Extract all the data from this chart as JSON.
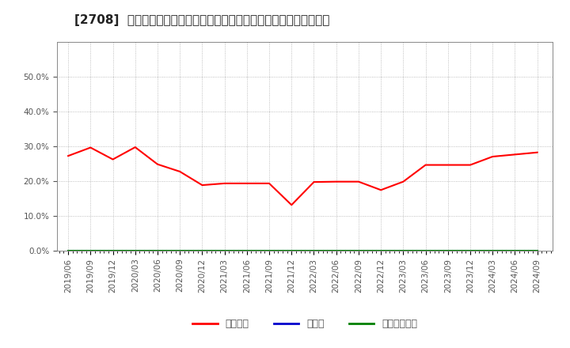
{
  "title": "[2708]  自己資本、のれん、繰延税金資産の総資産に対する比率の推移",
  "x_labels": [
    "2019/06",
    "2019/09",
    "2019/12",
    "2020/03",
    "2020/06",
    "2020/09",
    "2020/12",
    "2021/03",
    "2021/06",
    "2021/09",
    "2021/12",
    "2022/03",
    "2022/06",
    "2022/09",
    "2022/12",
    "2023/03",
    "2023/06",
    "2023/09",
    "2023/12",
    "2024/03",
    "2024/06",
    "2024/09"
  ],
  "equity_ratio": [
    0.272,
    0.296,
    0.262,
    0.297,
    0.248,
    0.227,
    0.188,
    0.193,
    0.193,
    0.193,
    0.131,
    0.197,
    0.198,
    0.198,
    0.174,
    0.198,
    0.246,
    0.246,
    0.246,
    0.27,
    0.276,
    0.282
  ],
  "noren_ratio": [
    0.0,
    0.0,
    0.0,
    0.0,
    0.0,
    0.0,
    0.0,
    0.0,
    0.0,
    0.0,
    0.0,
    0.0,
    0.0,
    0.0,
    0.0,
    0.0,
    0.0,
    0.0,
    0.0,
    0.0,
    0.0,
    0.0
  ],
  "deferred_tax_ratio": [
    0.0,
    0.0,
    0.0,
    0.0,
    0.0,
    0.0,
    0.0,
    0.0,
    0.0,
    0.0,
    0.0,
    0.0,
    0.0,
    0.0,
    0.0,
    0.0,
    0.0,
    0.0,
    0.0,
    0.0,
    0.0,
    0.0
  ],
  "equity_color": "#ff0000",
  "noren_color": "#0000cc",
  "deferred_tax_color": "#008000",
  "background_color": "#ffffff",
  "plot_bg_color": "#ffffff",
  "grid_color": "#999999",
  "ylim": [
    0.0,
    0.6
  ],
  "yticks": [
    0.0,
    0.1,
    0.2,
    0.3,
    0.4,
    0.5
  ],
  "legend_labels": [
    "自己資本",
    "のれん",
    "繰延税金資産"
  ],
  "title_fontsize": 11,
  "axis_fontsize": 7.5,
  "legend_fontsize": 9,
  "line_width": 1.5
}
